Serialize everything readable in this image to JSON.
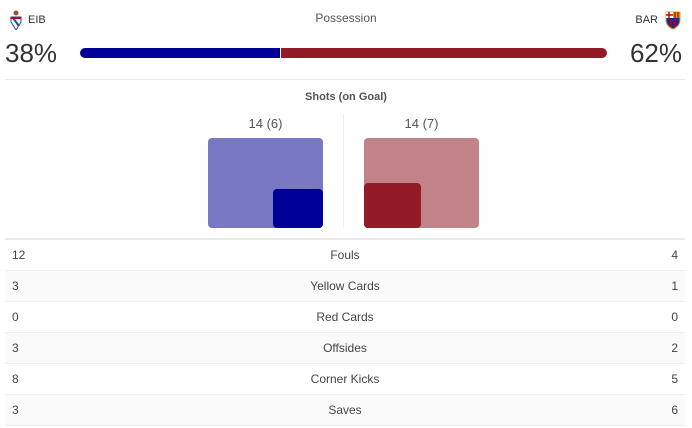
{
  "header": {
    "title": "Possession"
  },
  "home": {
    "abbr": "EIB",
    "possession": 38,
    "possession_label": "38%",
    "shots_label": "14 (6)",
    "shots": 14,
    "on_goal": 6,
    "color": "#000099",
    "light_color": "#7878c4"
  },
  "away": {
    "abbr": "BAR",
    "possession": 62,
    "possession_label": "62%",
    "shots_label": "14 (7)",
    "shots": 14,
    "on_goal": 7,
    "color": "#931b28",
    "light_color": "#c28388"
  },
  "shots": {
    "title": "Shots (on Goal)"
  },
  "stats": [
    {
      "home": "12",
      "label": "Fouls",
      "away": "4"
    },
    {
      "home": "3",
      "label": "Yellow Cards",
      "away": "1"
    },
    {
      "home": "0",
      "label": "Red Cards",
      "away": "0"
    },
    {
      "home": "3",
      "label": "Offsides",
      "away": "2"
    },
    {
      "home": "8",
      "label": "Corner Kicks",
      "away": "5"
    },
    {
      "home": "3",
      "label": "Saves",
      "away": "6"
    }
  ]
}
